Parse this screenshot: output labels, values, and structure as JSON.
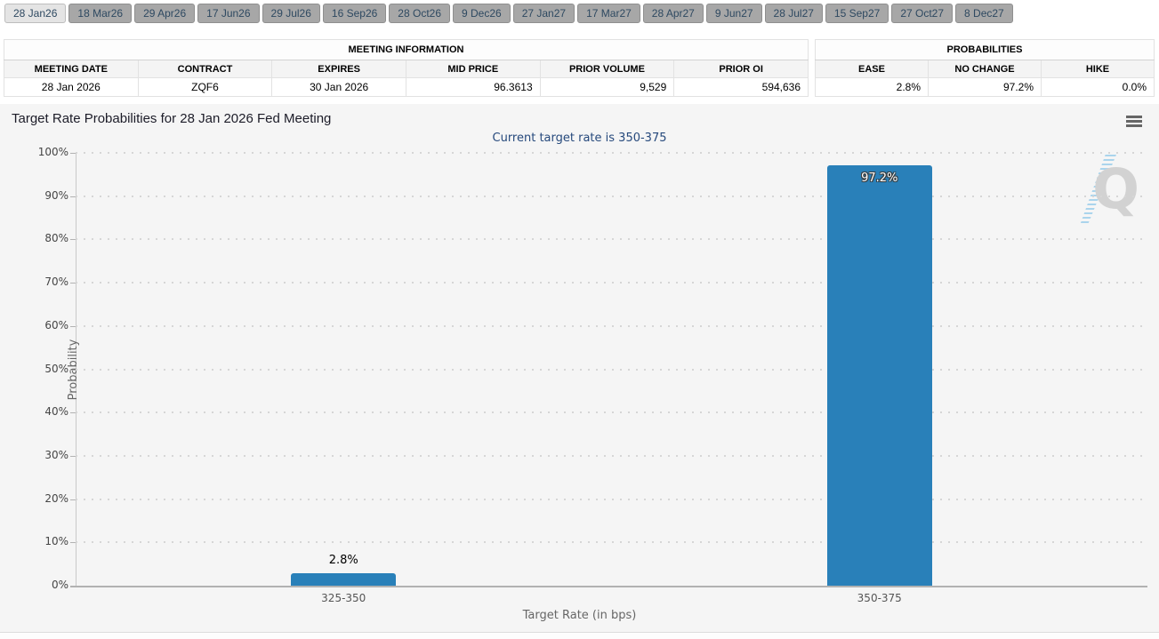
{
  "tabs": {
    "items": [
      "28 Jan26",
      "18 Mar26",
      "29 Apr26",
      "17 Jun26",
      "29 Jul26",
      "16 Sep26",
      "28 Oct26",
      "9 Dec26",
      "27 Jan27",
      "17 Mar27",
      "28 Apr27",
      "9 Jun27",
      "28 Jul27",
      "15 Sep27",
      "27 Oct27",
      "8 Dec27"
    ],
    "active_index": 0
  },
  "meeting_info": {
    "title": "MEETING INFORMATION",
    "columns": [
      "MEETING DATE",
      "CONTRACT",
      "EXPIRES",
      "MID PRICE",
      "PRIOR VOLUME",
      "PRIOR OI"
    ],
    "row": [
      "28 Jan 2026",
      "ZQF6",
      "30 Jan 2026",
      "96.3613",
      "9,529",
      "594,636"
    ]
  },
  "probabilities": {
    "title": "PROBABILITIES",
    "columns": [
      "EASE",
      "NO CHANGE",
      "HIKE"
    ],
    "row": [
      "2.8%",
      "97.2%",
      "0.0%"
    ]
  },
  "chart": {
    "title": "Target Rate Probabilities for 28 Jan 2026 Fed Meeting",
    "subtitle": "Current target rate is 350-375",
    "menu_icon": "hamburger-menu-icon",
    "watermark_letter": "Q"
  },
  "chart_data": {
    "type": "bar",
    "categories": [
      "325-350",
      "350-375"
    ],
    "values": [
      2.8,
      97.2
    ],
    "value_labels": [
      "2.8%",
      "97.2%"
    ],
    "title": "Target Rate Probabilities for 28 Jan 2026 Fed Meeting",
    "subtitle": "Current target rate is 350-375",
    "xlabel": "Target Rate (in bps)",
    "ylabel": "Probability",
    "ylim": [
      0,
      100
    ],
    "ytick_step": 10,
    "ytick_suffix": "%",
    "grid": "dotted horizontal",
    "legend": "none",
    "bar_color": "#2980b9"
  },
  "colors": {
    "accent_bar": "#2980b9",
    "subtitle_text": "#26497c",
    "chart_background": "#f5f5f5",
    "active_tab": "#e4e4e4",
    "inactive_tab": "#a7a7a7",
    "watermark_blue": "#82c3e8",
    "watermark_gray": "#d2d2d2"
  }
}
